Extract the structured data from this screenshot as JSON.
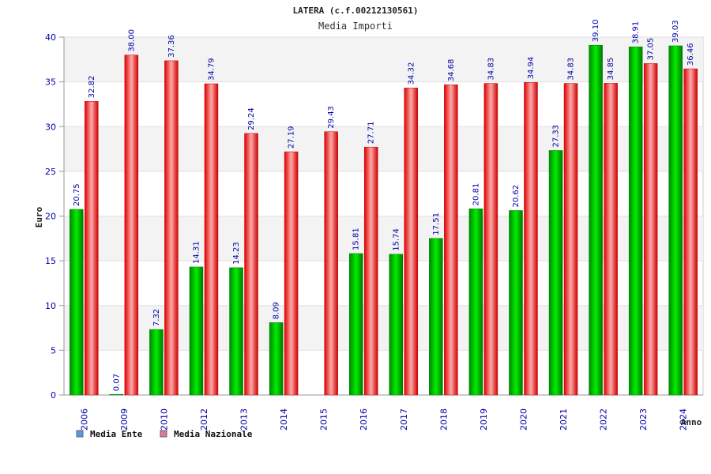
{
  "chart_data": {
    "type": "bar",
    "title": "LATERA (c.f.00212130561)",
    "subtitle": "Media Importi",
    "xlabel": "Anno",
    "ylabel": "Euro",
    "ylim": [
      0,
      40
    ],
    "yticks": [
      0,
      5,
      10,
      15,
      20,
      25,
      30,
      35,
      40
    ],
    "grid": true,
    "legend_position": "bottom-left",
    "categories": [
      "2006",
      "2009",
      "2010",
      "2012",
      "2013",
      "2014",
      "2015",
      "2016",
      "2017",
      "2018",
      "2019",
      "2020",
      "2021",
      "2022",
      "2023",
      "2024"
    ],
    "series": [
      {
        "name": "Media Ente",
        "color": "#00bb00",
        "legend_color": "#5599ee",
        "values": [
          20.75,
          0.07,
          7.32,
          14.31,
          14.23,
          8.09,
          null,
          15.81,
          15.74,
          17.51,
          20.81,
          20.62,
          27.33,
          39.1,
          38.91,
          39.03
        ],
        "labels": [
          "20.75",
          "0.07",
          "7.32",
          "14.31",
          "14.23",
          "8.09",
          "",
          "15.81",
          "15.74",
          "17.51",
          "20.81",
          "20.62",
          "27.33",
          "39.10",
          "38.91",
          "39.03"
        ]
      },
      {
        "name": "Media Nazionale",
        "color": "#ee2222",
        "legend_color": "#dd7799",
        "values": [
          32.82,
          38.0,
          37.36,
          34.79,
          29.24,
          27.19,
          29.43,
          27.71,
          34.32,
          34.68,
          34.83,
          34.94,
          34.83,
          34.85,
          37.05,
          36.46
        ],
        "labels": [
          "32.82",
          "38.00",
          "37.36",
          "34.79",
          "29.24",
          "27.19",
          "29.43",
          "27.71",
          "34.32",
          "34.68",
          "34.83",
          "34.94",
          "34.83",
          "34.85",
          "37.05",
          "36.46"
        ]
      }
    ]
  }
}
